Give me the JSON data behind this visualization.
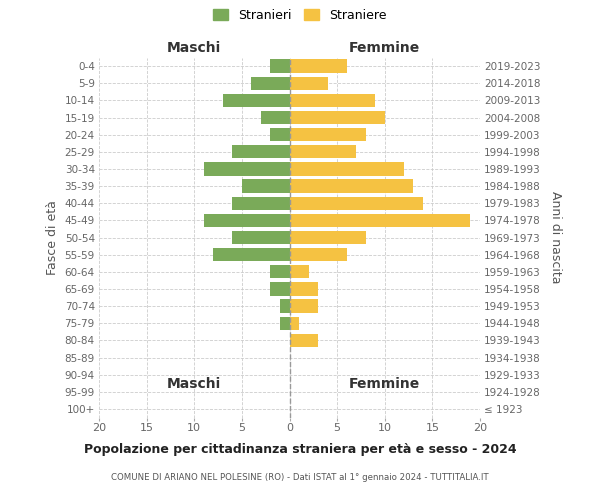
{
  "age_groups": [
    "100+",
    "95-99",
    "90-94",
    "85-89",
    "80-84",
    "75-79",
    "70-74",
    "65-69",
    "60-64",
    "55-59",
    "50-54",
    "45-49",
    "40-44",
    "35-39",
    "30-34",
    "25-29",
    "20-24",
    "15-19",
    "10-14",
    "5-9",
    "0-4"
  ],
  "birth_years": [
    "≤ 1923",
    "1924-1928",
    "1929-1933",
    "1934-1938",
    "1939-1943",
    "1944-1948",
    "1949-1953",
    "1954-1958",
    "1959-1963",
    "1964-1968",
    "1969-1973",
    "1974-1978",
    "1979-1983",
    "1984-1988",
    "1989-1993",
    "1994-1998",
    "1999-2003",
    "2004-2008",
    "2009-2013",
    "2014-2018",
    "2019-2023"
  ],
  "maschi": [
    0,
    0,
    0,
    0,
    0,
    1,
    1,
    2,
    2,
    8,
    6,
    9,
    6,
    5,
    9,
    6,
    2,
    3,
    7,
    4,
    2
  ],
  "femmine": [
    0,
    0,
    0,
    0,
    3,
    1,
    3,
    3,
    2,
    6,
    8,
    19,
    14,
    13,
    12,
    7,
    8,
    10,
    9,
    4,
    6
  ],
  "color_maschi": "#7aaa59",
  "color_femmine": "#f5c242",
  "title": "Popolazione per cittadinanza straniera per età e sesso - 2024",
  "subtitle": "COMUNE DI ARIANO NEL POLESINE (RO) - Dati ISTAT al 1° gennaio 2024 - TUTTITALIA.IT",
  "xlabel_left": "Maschi",
  "xlabel_right": "Femmine",
  "ylabel_left": "Fasce di età",
  "ylabel_right": "Anni di nascita",
  "legend_maschi": "Stranieri",
  "legend_femmine": "Straniere",
  "xlim": 20,
  "background_color": "#ffffff",
  "grid_color": "#cccccc"
}
